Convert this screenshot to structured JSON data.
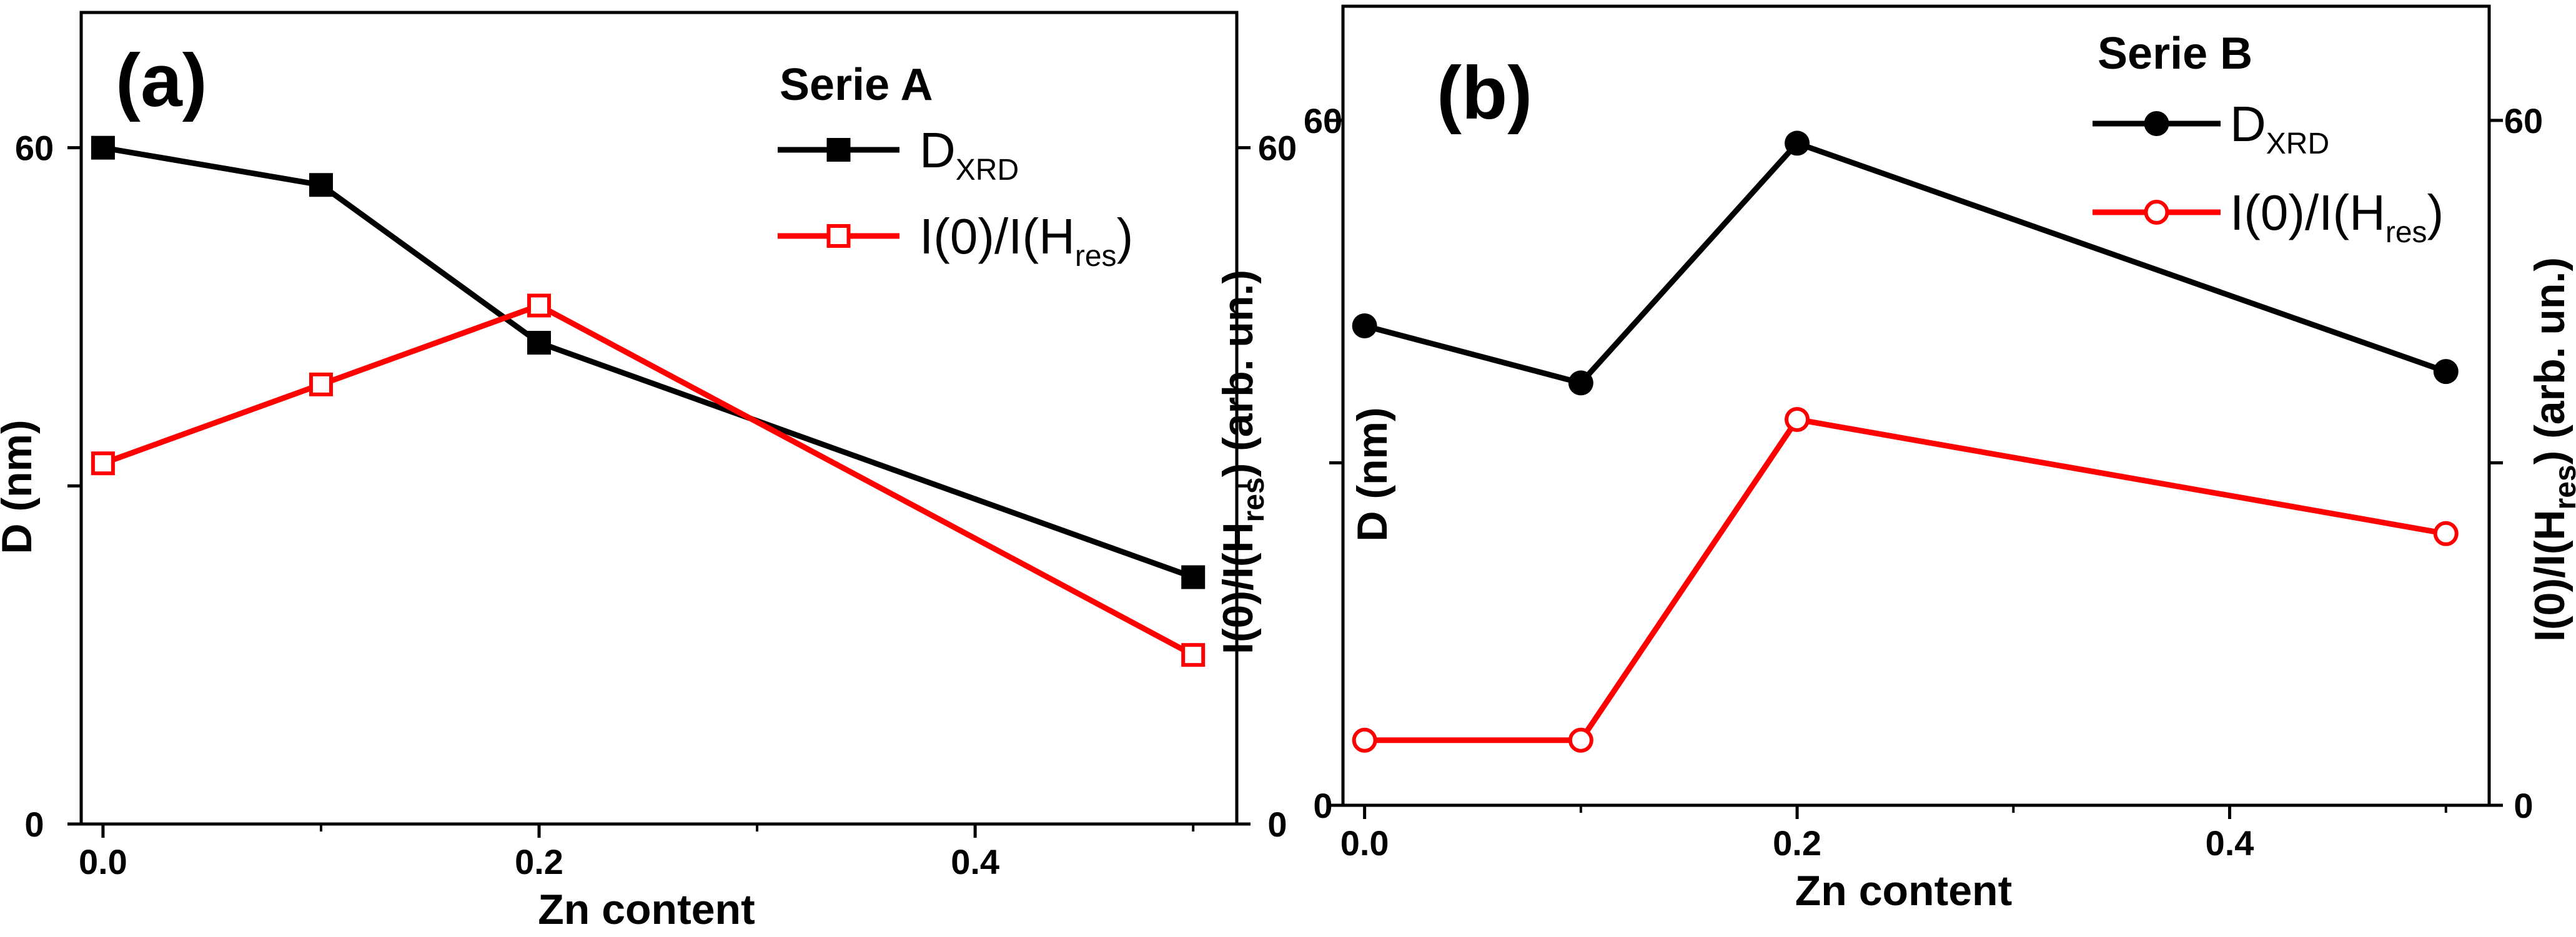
{
  "chart_data": [
    {
      "type": "line",
      "panel_label": "(a)",
      "legend_title": "Serie A",
      "legend_position": "top-right",
      "xlabel": "Zn content",
      "ylabel_left": "D (nm)",
      "ylabel_right_main": "I(0)/I(H",
      "ylabel_right_sub": "res",
      "ylabel_right_tail": ") (arb. un.)",
      "xlim": [
        -0.01,
        0.52
      ],
      "ylim": [
        0,
        72
      ],
      "x_ticks": [
        0.0,
        0.2,
        0.4
      ],
      "x_tick_labels": [
        "0.0",
        "0.2",
        "0.4"
      ],
      "y_ticks": [
        0,
        60
      ],
      "y_tick_labels": [
        "0",
        "60"
      ],
      "y_right_tick_labels": [
        "0",
        "60"
      ],
      "y_minor_ticks": [
        30
      ],
      "series": [
        {
          "name": "D_XRD",
          "label_main": "D",
          "label_sub": "XRD",
          "marker": "filled-square",
          "color": "#000000",
          "x": [
            0.0,
            0.1,
            0.2,
            0.5
          ],
          "y": [
            60.0,
            56.7,
            42.7,
            21.9
          ]
        },
        {
          "name": "I(0)/I(H_res)",
          "label_main": "I(0)/I(H",
          "label_sub": "res",
          "label_tail": ")",
          "marker": "open-square",
          "color": "#ff0000",
          "x": [
            0.0,
            0.1,
            0.2,
            0.5
          ],
          "y": [
            32.0,
            39.0,
            46.0,
            15.0
          ]
        }
      ]
    },
    {
      "type": "line",
      "panel_label": "(b)",
      "legend_title": "Serie B",
      "legend_position": "top-right",
      "xlabel": "Zn content",
      "ylabel_left": "D (nm)",
      "ylabel_right_main": "I(0)/I(H",
      "ylabel_right_sub": "res",
      "ylabel_right_tail": ") (arb. un.)",
      "xlim": [
        -0.01,
        0.52
      ],
      "ylim": [
        0,
        70
      ],
      "x_ticks": [
        0.0,
        0.2,
        0.4
      ],
      "x_tick_labels": [
        "0.0",
        "0.2",
        "0.4"
      ],
      "y_ticks": [
        0,
        60
      ],
      "y_tick_labels": [
        "0",
        "60"
      ],
      "y_right_tick_labels": [
        "0",
        "60"
      ],
      "y_minor_ticks": [
        30
      ],
      "series": [
        {
          "name": "D_XRD",
          "label_main": "D",
          "label_sub": "XRD",
          "marker": "filled-circle",
          "color": "#000000",
          "x": [
            0.0,
            0.1,
            0.2,
            0.5
          ],
          "y": [
            42.0,
            37.0,
            58.0,
            38.0
          ]
        },
        {
          "name": "I(0)/I(H_res)",
          "label_main": "I(0)/I(H",
          "label_sub": "res",
          "label_tail": ")",
          "marker": "open-circle",
          "color": "#ff0000",
          "x": [
            0.0,
            0.1,
            0.2,
            0.5
          ],
          "y": [
            5.7,
            5.7,
            33.8,
            23.8
          ]
        }
      ]
    }
  ]
}
